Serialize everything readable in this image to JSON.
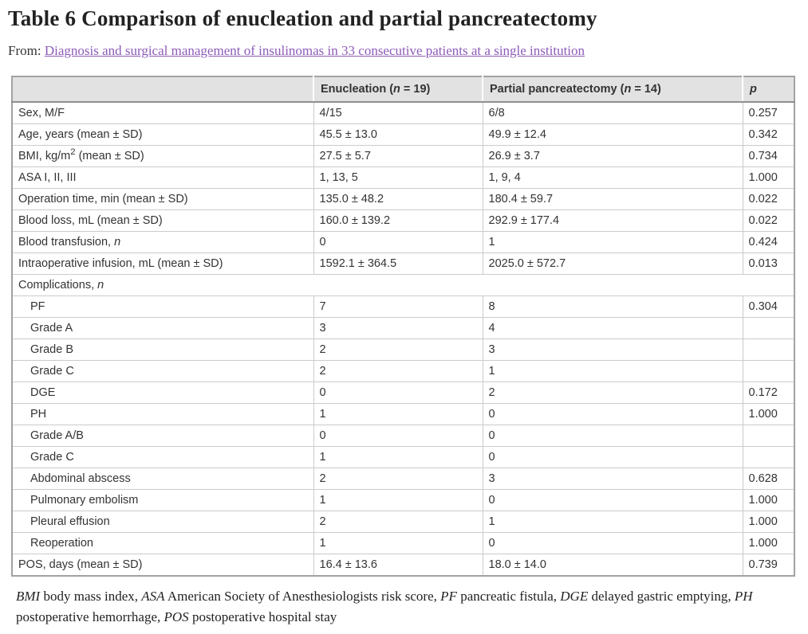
{
  "page": {
    "title": "Table 6 Comparison of enucleation and partial pancreatectomy",
    "from_label": "From:",
    "source_link_text": "Diagnosis and surgical management of insulinomas in 33 consecutive patients at a single institution"
  },
  "colors": {
    "link": "#8d5bb8",
    "header_bg": "#e2e2e2",
    "table_outer_border": "#a2a2a2",
    "header_bottom_border": "#8e8e8e",
    "cell_border": "#cbcbcb",
    "text": "#333333"
  },
  "table": {
    "columns": [
      {
        "parts": [
          {
            "t": ""
          }
        ]
      },
      {
        "parts": [
          {
            "t": "Enucleation ("
          },
          {
            "t": "n",
            "style": "italic"
          },
          {
            "t": " = 19)"
          }
        ]
      },
      {
        "parts": [
          {
            "t": "Partial pancreatectomy ("
          },
          {
            "t": "n",
            "style": "italic"
          },
          {
            "t": " = 14)"
          }
        ]
      },
      {
        "parts": [
          {
            "t": "p",
            "style": "italic"
          }
        ]
      }
    ],
    "rows": [
      {
        "label": [
          {
            "t": "Sex, M/F"
          }
        ],
        "values": [
          "4/15",
          "6/8",
          "0.257"
        ]
      },
      {
        "label": [
          {
            "t": "Age, years (mean ± SD)"
          }
        ],
        "values": [
          "45.5 ± 13.0",
          "49.9 ± 12.4",
          "0.342"
        ]
      },
      {
        "label": [
          {
            "t": "BMI, kg/m"
          },
          {
            "t": "2",
            "style": "sup"
          },
          {
            "t": " (mean ± SD)"
          }
        ],
        "values": [
          "27.5 ± 5.7",
          "26.9 ± 3.7",
          "0.734"
        ]
      },
      {
        "label": [
          {
            "t": "ASA I, II, III"
          }
        ],
        "values": [
          "1, 13, 5",
          "1, 9, 4",
          "1.000"
        ]
      },
      {
        "label": [
          {
            "t": "Operation time, min (mean ± SD)"
          }
        ],
        "values": [
          "135.0 ± 48.2",
          "180.4 ± 59.7",
          "0.022"
        ]
      },
      {
        "label": [
          {
            "t": "Blood loss, mL (mean ± SD)"
          }
        ],
        "values": [
          "160.0 ± 139.2",
          "292.9 ± 177.4",
          "0.022"
        ]
      },
      {
        "label": [
          {
            "t": "Blood transfusion, "
          },
          {
            "t": "n",
            "style": "italic"
          }
        ],
        "values": [
          "0",
          "1",
          "0.424"
        ]
      },
      {
        "label": [
          {
            "t": "Intraoperative infusion, mL (mean ± SD)"
          }
        ],
        "values": [
          "1592.1 ± 364.5",
          "2025.0 ± 572.7",
          "0.013"
        ]
      },
      {
        "label": [
          {
            "t": "Complications, "
          },
          {
            "t": "n",
            "style": "italic"
          }
        ],
        "span": true,
        "values": []
      },
      {
        "label": [
          {
            "t": "PF"
          }
        ],
        "indent": true,
        "values": [
          "7",
          "8",
          "0.304"
        ]
      },
      {
        "label": [
          {
            "t": "Grade A"
          }
        ],
        "indent": true,
        "values": [
          "3",
          "4",
          ""
        ]
      },
      {
        "label": [
          {
            "t": "Grade B"
          }
        ],
        "indent": true,
        "values": [
          "2",
          "3",
          ""
        ]
      },
      {
        "label": [
          {
            "t": "Grade C"
          }
        ],
        "indent": true,
        "values": [
          "2",
          "1",
          ""
        ]
      },
      {
        "label": [
          {
            "t": "DGE"
          }
        ],
        "indent": true,
        "values": [
          "0",
          "2",
          "0.172"
        ]
      },
      {
        "label": [
          {
            "t": "PH"
          }
        ],
        "indent": true,
        "values": [
          "1",
          "0",
          "1.000"
        ]
      },
      {
        "label": [
          {
            "t": "Grade A/B"
          }
        ],
        "indent": true,
        "values": [
          "0",
          "0",
          ""
        ]
      },
      {
        "label": [
          {
            "t": "Grade C"
          }
        ],
        "indent": true,
        "values": [
          "1",
          "0",
          ""
        ]
      },
      {
        "label": [
          {
            "t": "Abdominal abscess"
          }
        ],
        "indent": true,
        "values": [
          "2",
          "3",
          "0.628"
        ]
      },
      {
        "label": [
          {
            "t": "Pulmonary embolism"
          }
        ],
        "indent": true,
        "values": [
          "1",
          "0",
          "1.000"
        ]
      },
      {
        "label": [
          {
            "t": "Pleural effusion"
          }
        ],
        "indent": true,
        "values": [
          "2",
          "1",
          "1.000"
        ]
      },
      {
        "label": [
          {
            "t": "Reoperation"
          }
        ],
        "indent": true,
        "values": [
          "1",
          "0",
          "1.000"
        ]
      },
      {
        "label": [
          {
            "t": "POS, days (mean ± SD)"
          }
        ],
        "values": [
          "16.4 ± 13.6",
          "18.0 ± 14.0",
          "0.739"
        ]
      }
    ]
  },
  "footnote": {
    "parts": [
      {
        "t": "BMI",
        "style": "italic"
      },
      {
        "t": " body mass index, "
      },
      {
        "t": "ASA",
        "style": "italic"
      },
      {
        "t": " American Society of Anesthesiologists risk score, "
      },
      {
        "t": "PF",
        "style": "italic"
      },
      {
        "t": " pancreatic fistula, "
      },
      {
        "t": "DGE",
        "style": "italic"
      },
      {
        "t": " delayed gastric emptying, "
      },
      {
        "t": "PH",
        "style": "italic"
      },
      {
        "t": " postoperative hemorrhage, "
      },
      {
        "t": "POS",
        "style": "italic"
      },
      {
        "t": " postoperative hospital stay"
      }
    ]
  }
}
